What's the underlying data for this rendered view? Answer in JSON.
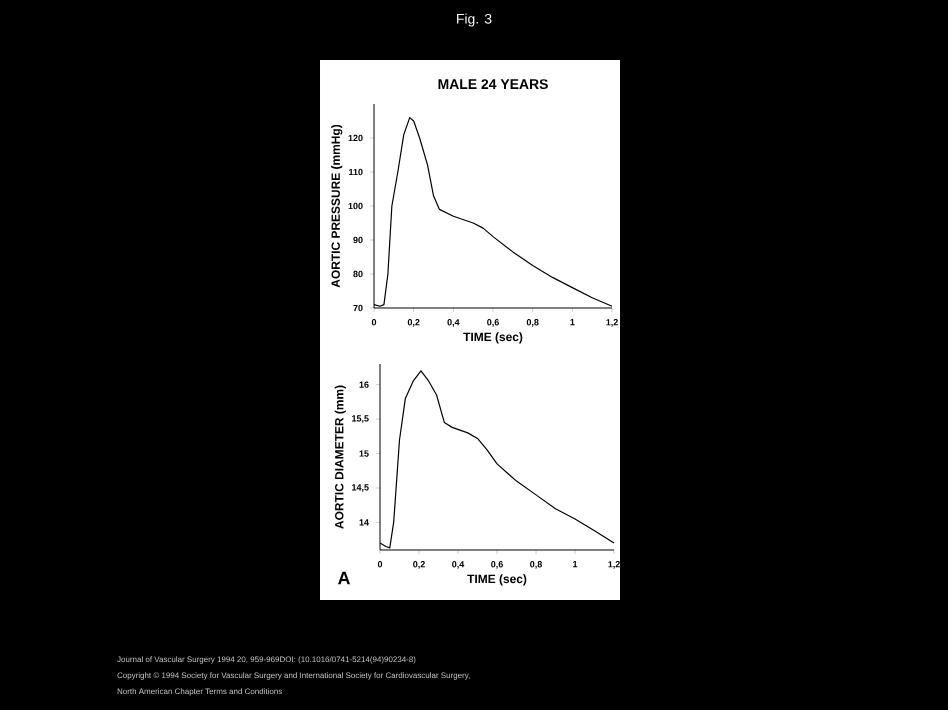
{
  "chart_data": [
    {
      "type": "line",
      "title": "Fig. 3",
      "subtitle": "MALE 24 YEARS",
      "xlabel": "TIME (sec)",
      "ylabel": "AORTIC PRESSURE (mmHg)",
      "color": "#000000",
      "x": [
        0,
        0.03,
        0.05,
        0.07,
        0.09,
        0.12,
        0.15,
        0.18,
        0.2,
        0.23,
        0.27,
        0.3,
        0.33,
        0.4,
        0.5,
        0.55,
        0.6,
        0.7,
        0.8,
        0.9,
        1.0,
        1.1,
        1.2
      ],
      "values": [
        71,
        70.5,
        71,
        80,
        100,
        110,
        121,
        126,
        125,
        120,
        112,
        103,
        99,
        97,
        95,
        93.5,
        91,
        86.5,
        82.5,
        79,
        76,
        73,
        70.5
      ],
      "xlim": [
        0,
        1.2
      ],
      "ylim": [
        70,
        130
      ],
      "xticks": [
        0,
        {
          "value": 0.2,
          "label": "0,2"
        },
        {
          "value": 0.4,
          "label": "0,4"
        },
        {
          "value": 0.6,
          "label": "0,6"
        },
        {
          "value": 0.8,
          "label": "0,8"
        },
        1,
        {
          "value": 1.2,
          "label": "1,2"
        }
      ],
      "yticks": [
        70,
        80,
        90,
        100,
        110,
        120
      ]
    },
    {
      "type": "line",
      "xlabel": "TIME (sec)",
      "ylabel": "AORTIC DIAMETER (mm)",
      "color": "#000000",
      "x": [
        0,
        0.03,
        0.05,
        0.07,
        0.1,
        0.13,
        0.17,
        0.21,
        0.25,
        0.29,
        0.33,
        0.37,
        0.45,
        0.5,
        0.55,
        0.6,
        0.7,
        0.8,
        0.9,
        1.0,
        1.1,
        1.2
      ],
      "values": [
        13.7,
        13.65,
        13.63,
        14.0,
        15.2,
        15.8,
        16.05,
        16.2,
        16.05,
        15.85,
        15.45,
        15.38,
        15.3,
        15.22,
        15.05,
        14.85,
        14.6,
        14.4,
        14.2,
        14.05,
        13.88,
        13.7
      ],
      "xlim": [
        0,
        1.2
      ],
      "ylim": [
        13.6,
        16.3
      ],
      "xticks": [
        0,
        {
          "value": 0.2,
          "label": "0,2"
        },
        {
          "value": 0.4,
          "label": "0,4"
        },
        {
          "value": 0.6,
          "label": "0,6"
        },
        {
          "value": 0.8,
          "label": "0,8"
        },
        1,
        {
          "value": 1.2,
          "label": "1,2"
        }
      ],
      "yticks": [
        14,
        {
          "value": 14.5,
          "label": "14,5"
        },
        15,
        {
          "value": 15.5,
          "label": "15,5"
        },
        16
      ],
      "annotations": [
        "A",
        "Journal of Vascular Surgery 1994 20, 959-969DOI: (10.1016/0741-5214(94)90234-8)",
        "Copyright © 1994 Society for Vascular Surgery and International Society for Cardiovascular Surgery,",
        "North American Chapter Terms and Conditions"
      ]
    }
  ]
}
